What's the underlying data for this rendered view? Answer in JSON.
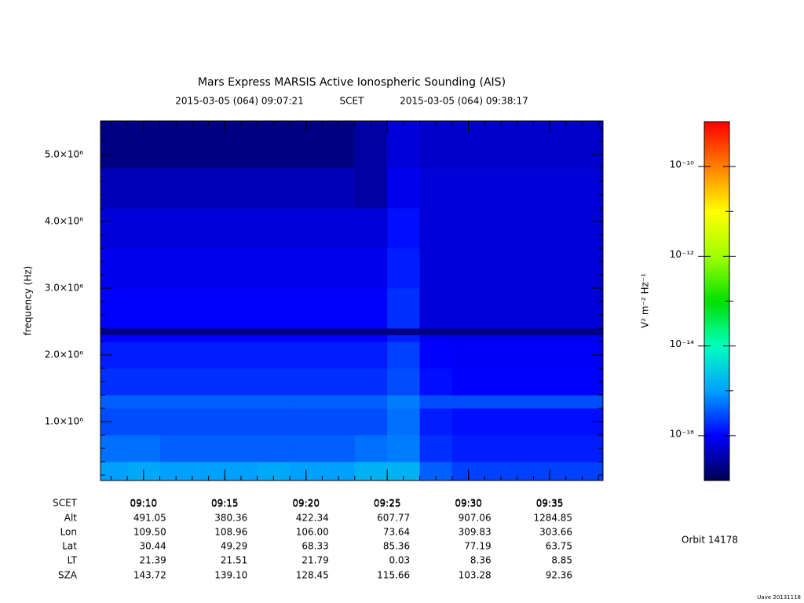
{
  "chart_data": {
    "type": "heatmap",
    "title": "Mars Express MARSIS Active Ionospheric Sounding (AIS)",
    "start_label": "2015-03-05 (064) 09:07:21",
    "time_system": "SCET",
    "end_label": "2015-03-05 (064) 09:38:17",
    "y_label": "frequency (Hz)",
    "xlim": [
      "09:07:21",
      "09:38:17"
    ],
    "xticks": [
      "09:10",
      "09:15",
      "09:20",
      "09:25",
      "09:30",
      "09:35"
    ],
    "ylim": [
      118000,
      5506000
    ],
    "yticks": [
      {
        "value": 1000000,
        "label": "1.0×10⁶"
      },
      {
        "value": 2000000,
        "label": "2.0×10⁶"
      },
      {
        "value": 3000000,
        "label": "3.0×10⁶"
      },
      {
        "value": 4000000,
        "label": "4.0×10⁶"
      },
      {
        "value": 5000000,
        "label": "5.0×10⁶"
      }
    ],
    "x_edges": [
      "09:07:21",
      "09:09",
      "09:11",
      "09:13",
      "09:15",
      "09:17",
      "09:19",
      "09:21",
      "09:23",
      "09:25",
      "09:27",
      "09:29",
      "09:31",
      "09:33",
      "09:35",
      "09:37",
      "09:38:17"
    ],
    "y_edges": [
      118000,
      400000,
      800000,
      1200000,
      1400000,
      1800000,
      2200000,
      2300000,
      2400000,
      3000000,
      3600000,
      4200000,
      4800000,
      5506000
    ],
    "values": [
      [
        1e-15,
        1.2e-15,
        1e-15,
        1e-15,
        1e-15,
        1.2e-15,
        1e-15,
        1e-15,
        1.5e-15,
        1.5e-15,
        4e-16,
        2.5e-16,
        2.5e-16,
        2.5e-16,
        2.5e-16,
        2.5e-16
      ],
      [
        5e-16,
        5e-16,
        4e-16,
        4e-16,
        4e-16,
        4e-16,
        4e-16,
        4e-16,
        5e-16,
        6e-16,
        2e-16,
        1.5e-16,
        1.5e-16,
        1.5e-16,
        1.5e-16,
        1.5e-16
      ],
      [
        3e-16,
        3e-16,
        3e-16,
        3e-16,
        3e-16,
        3e-16,
        3e-16,
        3e-16,
        3e-16,
        5e-16,
        1.5e-16,
        1.2e-16,
        1.2e-16,
        1.2e-16,
        1.2e-16,
        1.2e-16
      ],
      [
        4e-16,
        4e-16,
        4e-16,
        4e-16,
        4e-16,
        4e-16,
        4e-16,
        4e-16,
        4e-16,
        6e-16,
        3e-16,
        3e-16,
        3e-16,
        3e-16,
        3e-16,
        3e-16
      ],
      [
        2e-16,
        2e-16,
        2e-16,
        2e-16,
        2e-16,
        2e-16,
        2e-16,
        2e-16,
        2e-16,
        3e-16,
        1.2e-16,
        1e-16,
        1e-16,
        1e-16,
        1e-16,
        1e-16
      ],
      [
        1.5e-16,
        1.5e-16,
        1.5e-16,
        1.5e-16,
        1.5e-16,
        1.5e-16,
        1.5e-16,
        1.5e-16,
        1.5e-16,
        2.5e-16,
        1e-16,
        9e-17,
        9e-17,
        9e-17,
        9e-17,
        9e-17
      ],
      [
        1e-16,
        1e-16,
        1e-16,
        1e-16,
        1e-16,
        1e-16,
        1e-16,
        1e-16,
        1e-16,
        1.5e-16,
        8e-17,
        8e-17,
        8e-17,
        8e-17,
        8e-17,
        8e-17
      ],
      [
        2e-17,
        2e-17,
        2e-17,
        2e-17,
        2e-17,
        2e-17,
        2e-17,
        2e-17,
        2e-17,
        2e-17,
        2e-17,
        2e-17,
        2e-17,
        2e-17,
        2e-17,
        2e-17
      ],
      [
        1e-16,
        1e-16,
        1e-16,
        1e-16,
        1e-16,
        1e-16,
        1e-16,
        1e-16,
        1e-16,
        2e-16,
        6e-17,
        6e-17,
        6e-17,
        6e-17,
        6e-17,
        6e-17
      ],
      [
        8e-17,
        8e-17,
        8e-17,
        8e-17,
        8e-17,
        8e-17,
        8e-17,
        8e-17,
        8e-17,
        1.5e-16,
        6e-17,
        6e-17,
        6e-17,
        6e-17,
        6e-17,
        6e-17
      ],
      [
        6e-17,
        6e-17,
        6e-17,
        6e-17,
        6e-17,
        6e-17,
        6e-17,
        6e-17,
        6e-17,
        1.2e-16,
        6e-17,
        6e-17,
        6e-17,
        6e-17,
        6e-17,
        6e-17
      ],
      [
        4e-17,
        4e-17,
        4e-17,
        4e-17,
        4e-17,
        4e-17,
        4e-17,
        4e-17,
        3e-17,
        8e-17,
        6e-17,
        6e-17,
        6e-17,
        6e-17,
        6e-17,
        6e-17
      ],
      [
        2e-17,
        2e-17,
        2e-17,
        2e-17,
        2e-17,
        2e-17,
        2e-17,
        2e-17,
        3e-17,
        6e-17,
        5e-17,
        5e-17,
        5e-17,
        5e-17,
        5e-17,
        5e-17
      ]
    ],
    "colorbar_label": "V² m⁻² Hz⁻¹",
    "zlim": [
      1e-17,
      1e-09
    ],
    "zticks": [
      {
        "value": 1e-10,
        "label": "10⁻¹⁰"
      },
      {
        "value": 1e-12,
        "label": "10⁻¹²"
      },
      {
        "value": 1e-14,
        "label": "10⁻¹⁴"
      },
      {
        "value": 1e-16,
        "label": "10⁻¹⁶"
      }
    ],
    "z_log": true,
    "colormap": [
      "#000050",
      "#0000ff",
      "#00a0ff",
      "#00ffc0",
      "#00e000",
      "#a0ff00",
      "#ffff00",
      "#ff8000",
      "#ff0000"
    ]
  },
  "ephemeris": {
    "labels": [
      "SCET",
      "Alt",
      "Lon",
      "Lat",
      "LT",
      "SZA"
    ],
    "rows": [
      [
        "491.05",
        "380.36",
        "422.34",
        "607.77",
        "907.06",
        "1284.85"
      ],
      [
        "109.50",
        "108.96",
        "106.00",
        "73.64",
        "309.83",
        "303.66"
      ],
      [
        "30.44",
        "49.29",
        "68.33",
        "85.36",
        "77.19",
        "63.75"
      ],
      [
        "21.39",
        "21.51",
        "21.79",
        "0.03",
        "8.36",
        "8.85"
      ],
      [
        "143.72",
        "139.10",
        "128.45",
        "115.66",
        "103.28",
        "92.36"
      ]
    ]
  },
  "orbit": "Orbit 14178",
  "footer": "Uave 20131118"
}
